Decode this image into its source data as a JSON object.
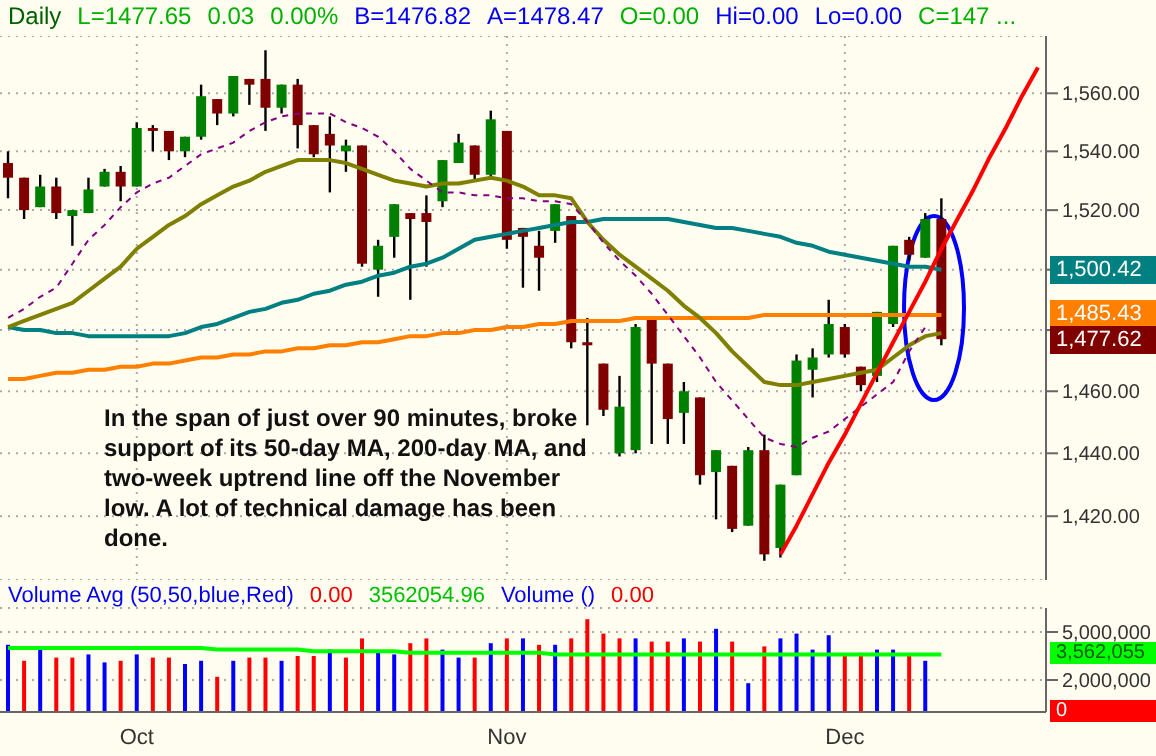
{
  "chart_data": [
    {
      "type": "candlestick",
      "title": "Daily",
      "log": true,
      "grid": true,
      "tick_labels": "y",
      "categories": [
        null,
        null,
        null,
        null,
        null,
        null,
        null,
        null,
        null,
        null,
        null,
        null,
        null,
        null,
        null,
        null,
        null,
        null,
        null,
        null,
        null,
        null,
        null,
        null,
        null,
        null,
        null,
        null,
        null,
        null,
        null,
        null,
        null,
        null,
        null,
        null,
        null,
        null,
        null,
        null,
        null,
        null,
        null,
        null,
        null,
        null,
        null,
        null,
        null,
        null,
        null,
        null,
        null,
        null,
        null,
        null,
        null,
        null,
        null,
        null,
        null,
        null,
        null,
        null,
        null
      ],
      "ohlc": [
        [
          1536,
          1540,
          1524,
          1531
        ],
        [
          1531,
          1531,
          1517,
          1520
        ],
        [
          1521,
          1532,
          1521,
          1528
        ],
        [
          1528,
          1531,
          1517,
          1519
        ],
        [
          1518,
          1520,
          1508,
          1520
        ],
        [
          1519,
          1531,
          1519,
          1527
        ],
        [
          1528,
          1534,
          1528,
          1533
        ],
        [
          1533,
          1535,
          1523,
          1528
        ],
        [
          1528,
          1550,
          1528,
          1548
        ],
        [
          1548,
          1549,
          1540,
          1547
        ],
        [
          1547,
          1547,
          1537,
          1540
        ],
        [
          1540,
          1545,
          1538,
          1545
        ],
        [
          1545,
          1563,
          1544,
          1559
        ],
        [
          1558,
          1558,
          1549,
          1553
        ],
        [
          1553,
          1566,
          1552,
          1566
        ],
        [
          1565,
          1565,
          1556,
          1563
        ],
        [
          1565,
          1575,
          1547,
          1555
        ],
        [
          1555,
          1563,
          1553,
          1563
        ],
        [
          1563,
          1565,
          1541,
          1549
        ],
        [
          1549,
          1549,
          1538,
          1539
        ],
        [
          1546,
          1552,
          1526,
          1542
        ],
        [
          1540,
          1544,
          1533,
          1542
        ],
        [
          1542,
          1542,
          1501,
          1502
        ],
        [
          1500,
          1510,
          1491,
          1508
        ],
        [
          1511,
          1522,
          1504,
          1522
        ],
        [
          1519,
          1519,
          1490,
          1517
        ],
        [
          1519,
          1525,
          1501,
          1516
        ],
        [
          1523,
          1537,
          1521,
          1537
        ],
        [
          1536,
          1546,
          1536,
          1543
        ],
        [
          1542,
          1542,
          1530,
          1532
        ],
        [
          1532,
          1554,
          1531,
          1551
        ],
        [
          1547,
          1547,
          1507,
          1510
        ],
        [
          1514,
          1514,
          1494,
          1511
        ],
        [
          1508,
          1513,
          1493,
          1504
        ],
        [
          1513,
          1522,
          1509,
          1522
        ],
        [
          1518,
          1518,
          1474,
          1476
        ],
        [
          1476,
          1484,
          1449,
          1475
        ],
        [
          1469,
          1469,
          1452,
          1454
        ],
        [
          1440,
          1465,
          1439,
          1455
        ],
        [
          1441,
          1482,
          1440,
          1481
        ],
        [
          1484,
          1484,
          1443,
          1469
        ],
        [
          1469,
          1469,
          1443,
          1451
        ],
        [
          1453,
          1463,
          1443,
          1460
        ],
        [
          1458,
          1458,
          1430,
          1433
        ],
        [
          1434,
          1441,
          1419,
          1441
        ],
        [
          1436,
          1436,
          1415,
          1416
        ],
        [
          1417,
          1442,
          1417,
          1441
        ],
        [
          1441,
          1446,
          1406,
          1408
        ],
        [
          1410,
          1430,
          1407,
          1430
        ],
        [
          1433,
          1472,
          1433,
          1470
        ],
        [
          1467,
          1474,
          1458,
          1471
        ],
        [
          1472,
          1490,
          1471,
          1482
        ],
        [
          1481,
          1482,
          1471,
          1472
        ],
        [
          1468,
          1468,
          1460,
          1462
        ],
        [
          1465,
          1486,
          1463,
          1486
        ],
        [
          1482,
          1508,
          1481,
          1508
        ],
        [
          1510,
          1511,
          1503,
          1505
        ],
        [
          1504,
          1519,
          1504,
          1517
        ],
        [
          1517,
          1524,
          1475,
          1477
        ],
        null,
        null,
        null,
        null,
        null,
        null
      ],
      "colors": [
        "#800000",
        "#800000",
        "#008000",
        "#800000",
        "#008000",
        "#008000",
        "#008000",
        "#800000",
        "#008000",
        "#800000",
        "#800000",
        "#008000",
        "#008000",
        "#800000",
        "#008000",
        "#800000",
        "#800000",
        "#008000",
        "#800000",
        "#800000",
        "#800000",
        "#008000",
        "#800000",
        "#008000",
        "#008000",
        "#800000",
        "#800000",
        "#008000",
        "#008000",
        "#800000",
        "#008000",
        "#800000",
        "#800000",
        "#800000",
        "#008000",
        "#800000",
        "#800000",
        "#800000",
        "#008000",
        "#008000",
        "#800000",
        "#800000",
        "#008000",
        "#800000",
        "#008000",
        "#800000",
        "#008000",
        "#800000",
        "#008000",
        "#008000",
        "#008000",
        "#008000",
        "#800000",
        "#800000",
        "#008000",
        "#008000",
        "#800000",
        "#008000",
        "#800000",
        null,
        null,
        null,
        null,
        null,
        null
      ],
      "series": [
        {
          "type": "line",
          "color": "#ff8000",
          "values": [
            1464,
            1464,
            1465,
            1466,
            1466,
            1467,
            1467,
            1468,
            1468,
            1469,
            1469,
            1470,
            1471,
            1471,
            1472,
            1472,
            1473,
            1473,
            1474,
            1474,
            1475,
            1475,
            1476,
            1476,
            1477,
            1478,
            1478,
            1479,
            1479,
            1480,
            1480,
            1481,
            1481,
            1482,
            1482,
            1483,
            1483,
            1483,
            1483,
            1484,
            1484,
            1484,
            1484,
            1484,
            1484,
            1484,
            1484,
            1485,
            1485,
            1485,
            1485,
            1485,
            1485,
            1485,
            1485,
            1485,
            1485,
            1485,
            1485,
            null,
            null,
            null,
            null,
            null,
            null
          ]
        },
        {
          "type": "line",
          "color": "#008080",
          "values": [
            1481,
            1480,
            1480,
            1479,
            1479,
            1478,
            1478,
            1478,
            1478,
            1478,
            1478,
            1479,
            1481,
            1482,
            1484,
            1486,
            1487,
            1489,
            1490,
            1492,
            1493,
            1495,
            1496,
            1498,
            1499,
            1501,
            1502,
            1504,
            1507,
            1510,
            1511,
            1512,
            1513,
            1514,
            1515,
            1516,
            1516,
            1517,
            1517,
            1517,
            1517,
            1517,
            1516,
            1515,
            1514,
            1514,
            1513,
            1512,
            1511,
            1509,
            1508,
            1506,
            1505,
            1504,
            1503,
            1502,
            1501,
            1501,
            1500,
            null,
            null,
            null,
            null,
            null,
            null
          ]
        },
        {
          "type": "line",
          "color": "#808000",
          "values": [
            1481,
            1483,
            1485,
            1487,
            1489,
            1493,
            1497,
            1501,
            1507,
            1511,
            1515,
            1518,
            1522,
            1525,
            1528,
            1530,
            1533,
            1535,
            1537,
            1537,
            1537,
            1536,
            1534,
            1532,
            1530,
            1529,
            1528,
            1529,
            1529,
            1530,
            1531,
            1530,
            1528,
            1525,
            1525,
            1524,
            1516,
            1510,
            1505,
            1501,
            1497,
            1493,
            1488,
            1484,
            1479,
            1473,
            1468,
            1463,
            1462,
            1462,
            1463,
            1464,
            1465,
            1466,
            1467,
            1471,
            1475,
            1478,
            1479,
            null,
            null,
            null,
            null,
            null,
            null
          ]
        },
        {
          "type": "line",
          "color": "#800080",
          "line_style": "dashed",
          "values": [
            1484,
            1487,
            1491,
            1494,
            1502,
            1510,
            1515,
            1521,
            1526,
            1529,
            1531,
            1535,
            1539,
            1541,
            1543,
            1547,
            1550,
            1552,
            1553,
            1553,
            1553,
            1550,
            1548,
            1545,
            1540,
            1534,
            1530,
            1526,
            1526,
            1525,
            1525,
            1524,
            1524,
            1523,
            1523,
            1522,
            1516,
            1509,
            1503,
            1498,
            1492,
            1485,
            1478,
            1471,
            1463,
            1457,
            1451,
            1445,
            1443,
            1442,
            1445,
            1447,
            1451,
            1455,
            1459,
            1463,
            1473,
            1481,
            null,
            null,
            null,
            null,
            null,
            null,
            null
          ]
        },
        {
          "type": "line",
          "color": "#ff0000",
          "values": [
            null,
            null,
            null,
            null,
            null,
            null,
            null,
            null,
            null,
            null,
            null,
            null,
            null,
            null,
            null,
            null,
            null,
            null,
            null,
            null,
            null,
            null,
            null,
            null,
            null,
            null,
            null,
            null,
            null,
            null,
            null,
            null,
            null,
            null,
            null,
            null,
            null,
            null,
            null,
            null,
            null,
            null,
            null,
            null,
            null,
            null,
            null,
            null,
            1408,
            1417,
            1427,
            1437,
            1446,
            1456,
            1466,
            1476,
            1486,
            1496,
            1507,
            1517,
            1527,
            1538,
            1548,
            1559,
            1569
          ]
        }
      ],
      "ylim": [
        1400,
        1580
      ],
      "yticks": [
        {
          "value": 1420,
          "label": "1,420.00"
        },
        {
          "value": 1440,
          "label": "1,440.00"
        },
        {
          "value": 1460,
          "label": "1,460.00"
        },
        {
          "value": 1480,
          "label": null
        },
        {
          "value": 1500,
          "label": null
        },
        {
          "value": 1520,
          "label": "1,520.00"
        },
        {
          "value": 1540,
          "label": "1,540.00"
        },
        {
          "value": 1560,
          "label": "1,560.00"
        }
      ],
      "annotations": [
        "L=1477.65",
        "0.03",
        "0.00%",
        "B=1476.82",
        "A=1478.47",
        "O=0.00",
        "Hi=0.00",
        "Lo=0.00",
        "C=147 ...",
        "In the span of just over 90 minutes, broke support of its 50-day MA, 200-day MA, and two-week uptrend line off the November low.  A lot of technical damage has been done.",
        "1,500.42",
        "1,485.43",
        "1,477.62"
      ]
    },
    {
      "type": "bar",
      "grid": "y",
      "categories": [
        null,
        null,
        null,
        null,
        null,
        null,
        null,
        null,
        "Oct",
        null,
        null,
        null,
        null,
        null,
        null,
        null,
        null,
        null,
        null,
        null,
        null,
        null,
        null,
        null,
        null,
        null,
        null,
        null,
        null,
        null,
        null,
        "Nov",
        null,
        null,
        null,
        null,
        null,
        null,
        null,
        null,
        null,
        null,
        null,
        null,
        null,
        null,
        null,
        null,
        null,
        null,
        null,
        null,
        "Dec",
        null,
        null,
        null,
        null,
        null,
        null,
        null,
        null,
        null,
        null,
        null,
        null
      ],
      "series": [
        {
          "type": "bar",
          "values": [
            4200000,
            3200000,
            3900000,
            3400000,
            3400000,
            3600000,
            3100000,
            3200000,
            3600000,
            3400000,
            3400000,
            3000000,
            3200000,
            2200000,
            3200000,
            3400000,
            3400000,
            3200000,
            3500000,
            3500000,
            3900000,
            3400000,
            4600000,
            3800000,
            3600000,
            4300000,
            4600000,
            3900000,
            3400000,
            3400000,
            4300000,
            4600000,
            4600000,
            4200000,
            4200000,
            4600000,
            5800000,
            4900000,
            4600000,
            4600000,
            4400000,
            4400000,
            4600000,
            4400000,
            5200000,
            4400000,
            1800000,
            4100000,
            4600000,
            4900000,
            3900000,
            4800000,
            3600000,
            3700000,
            3900000,
            3900000,
            3500000,
            3200000,
            0,
            null,
            null,
            null,
            null,
            null,
            null
          ],
          "colors": [
            "#0000ff",
            "#ff0000",
            "#0000ff",
            "#ff0000",
            "#ff0000",
            "#0000ff",
            "#0000ff",
            "#ff0000",
            "#0000ff",
            "#ff0000",
            "#ff0000",
            "#0000ff",
            "#0000ff",
            "#ff0000",
            "#0000ff",
            "#ff0000",
            "#ff0000",
            "#0000ff",
            "#ff0000",
            "#ff0000",
            "#0000ff",
            "#ff0000",
            "#ff0000",
            "#0000ff",
            "#0000ff",
            "#ff0000",
            "#ff0000",
            "#0000ff",
            "#0000ff",
            "#ff0000",
            "#0000ff",
            "#ff0000",
            "#0000ff",
            "#ff0000",
            "#0000ff",
            "#ff0000",
            "#ff0000",
            "#ff0000",
            "#ff0000",
            "#0000ff",
            "#ff0000",
            "#ff0000",
            "#0000ff",
            "#ff0000",
            "#0000ff",
            "#ff0000",
            "#0000ff",
            "#ff0000",
            "#0000ff",
            "#0000ff",
            "#0000ff",
            "#0000ff",
            "#ff0000",
            "#ff0000",
            "#0000ff",
            "#0000ff",
            "#ff0000",
            "#0000ff",
            "#ff0000",
            null,
            null,
            null,
            null,
            null,
            null
          ]
        },
        {
          "type": "line",
          "color": "#00ff00",
          "values": [
            4000000,
            4000000,
            4000000,
            4000000,
            4000000,
            4000000,
            4000000,
            4000000,
            4000000,
            4000000,
            4000000,
            4000000,
            4000000,
            3900000,
            3900000,
            3900000,
            3900000,
            3900000,
            3900000,
            3800000,
            3800000,
            3800000,
            3800000,
            3800000,
            3800000,
            3700000,
            3700000,
            3700000,
            3700000,
            3700000,
            3700000,
            3700000,
            3700000,
            3700000,
            3600000,
            3600000,
            3600000,
            3600000,
            3600000,
            3600000,
            3600000,
            3600000,
            3600000,
            3600000,
            3600000,
            3600000,
            3600000,
            3600000,
            3600000,
            3600000,
            3600000,
            3600000,
            3600000,
            3600000,
            3600000,
            3600000,
            3600000,
            3600000,
            3600000,
            null,
            null,
            null,
            null,
            null,
            null
          ]
        }
      ],
      "ylim": [
        0,
        6500000
      ],
      "yticks": [
        {
          "value": 2000000,
          "label": "2,000,000"
        },
        {
          "value": 5000000,
          "label": "5,000,000"
        }
      ],
      "annotations": [
        "Volume Avg (50,50,blue,Red)",
        "0.00",
        "3562054.96",
        "Volume ()",
        "0.00",
        "3,562,055",
        "0"
      ]
    }
  ]
}
